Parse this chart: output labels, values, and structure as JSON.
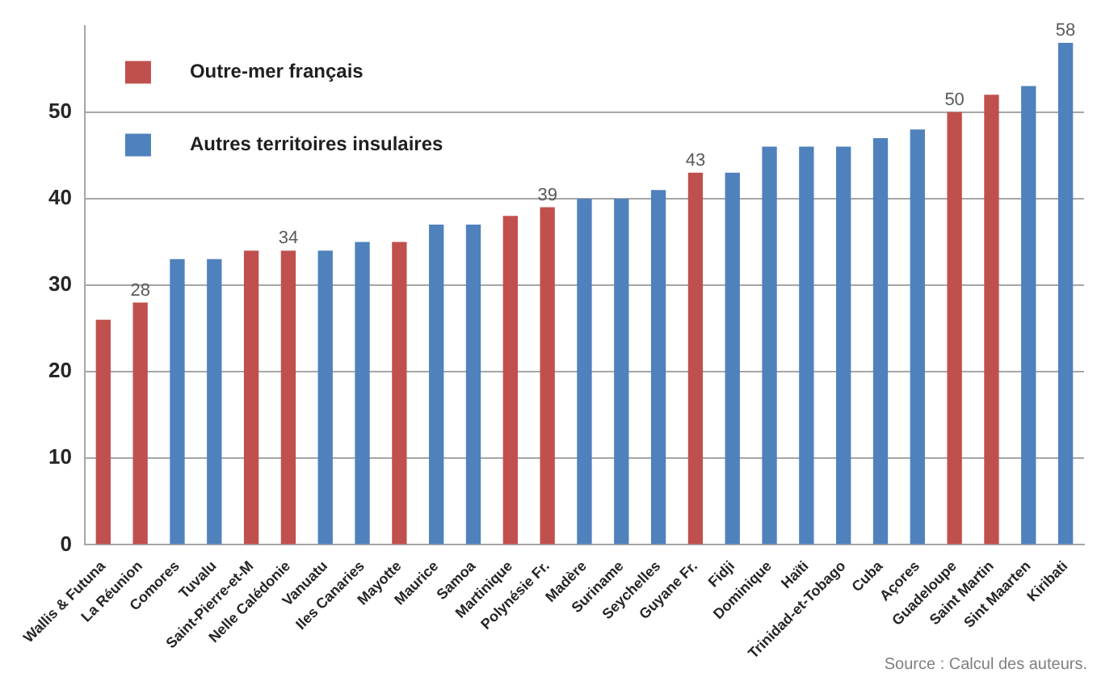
{
  "chart_data": {
    "type": "bar",
    "categories": [
      "Wallis & Futuna",
      "La Réunion",
      "Comores",
      "Tuvalu",
      "Saint-Pierre-et-M",
      "Nelle Calédonie",
      "Vanuatu",
      "Iles Canaries",
      "Mayotte",
      "Maurice",
      "Samoa",
      "Martinique",
      "Polynésie Fr.",
      "Madère",
      "Suriname",
      "Seychelles",
      "Guyane Fr.",
      "Fidji",
      "Dominique",
      "Haïti",
      "Trinidad-et-Tobago",
      "Cuba",
      "Açores",
      "Guadeloupe",
      "Saint Martin",
      "Sint Maarten",
      "Kiribati"
    ],
    "series": [
      {
        "name": "Outre-mer français",
        "color": "#c0504d",
        "values": [
          26,
          28,
          null,
          null,
          34,
          34,
          null,
          null,
          35,
          null,
          null,
          38,
          39,
          null,
          null,
          null,
          43,
          null,
          null,
          null,
          null,
          null,
          null,
          50,
          52,
          null,
          null
        ],
        "value_labels": [
          null,
          "28",
          null,
          null,
          null,
          "34",
          null,
          null,
          null,
          null,
          null,
          null,
          "39",
          null,
          null,
          null,
          "43",
          null,
          null,
          null,
          null,
          null,
          null,
          "50",
          null,
          null,
          null
        ]
      },
      {
        "name": "Autres territoires insulaires",
        "color": "#4f81bd",
        "values": [
          null,
          null,
          33,
          33,
          null,
          null,
          34,
          35,
          null,
          37,
          37,
          null,
          null,
          40,
          40,
          41,
          null,
          43,
          46,
          46,
          46,
          47,
          48,
          null,
          null,
          53,
          58
        ],
        "value_labels": [
          null,
          null,
          null,
          null,
          null,
          null,
          null,
          null,
          null,
          null,
          null,
          null,
          null,
          null,
          null,
          null,
          null,
          null,
          null,
          null,
          null,
          null,
          null,
          null,
          null,
          null,
          "58"
        ]
      }
    ],
    "ylim": [
      0,
      60
    ],
    "yticks": [
      0,
      10,
      20,
      30,
      40,
      50
    ],
    "grid": "y",
    "legend": "top left",
    "annotations": [
      "Source : Calcul des auteurs."
    ]
  }
}
